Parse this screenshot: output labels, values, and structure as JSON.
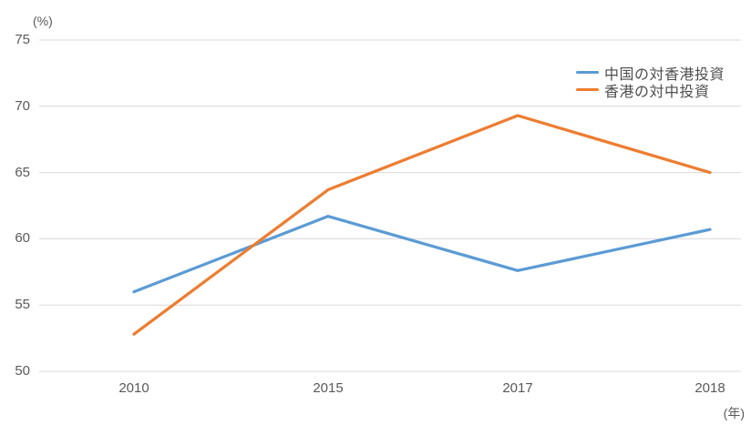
{
  "chart_data": {
    "type": "line",
    "title": "",
    "x": [
      "2010",
      "2015",
      "2017",
      "2018"
    ],
    "series": [
      {
        "name": "中国の対香港投資",
        "color": "#5B9BD5",
        "values": [
          56.0,
          61.7,
          57.6,
          60.7
        ]
      },
      {
        "name": "香港の対中投資",
        "color": "#ED7D31",
        "values": [
          52.8,
          63.7,
          69.3,
          65.0
        ]
      }
    ],
    "y_axis": {
      "unit_label": "(%)",
      "min": 50,
      "max": 75,
      "tick_step": 5,
      "ticks": [
        75,
        70,
        65,
        60,
        55,
        50
      ]
    },
    "x_axis": {
      "unit_label": "(年)"
    },
    "grid": "horizontal-only",
    "legend_position": "top-right",
    "line_width": 3.25,
    "colors": {
      "gridline": "#D9D9D9",
      "axis_text": "#595959",
      "legend_text": "#4D4D4D",
      "background": "#FFFFFF"
    }
  }
}
